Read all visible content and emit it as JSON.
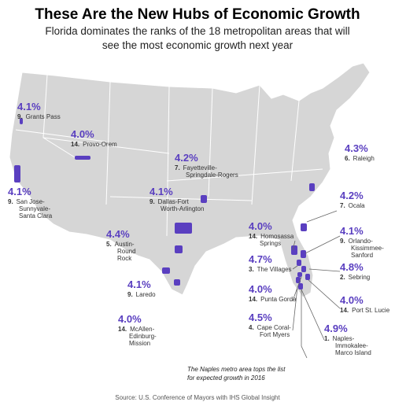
{
  "header": {
    "title": "These Are the New Hubs of Economic Growth",
    "subtitle_lines": [
      "Florida dominates the ranks of the 18 metropolitan areas that will",
      "see the most economic growth next year"
    ]
  },
  "regions": [
    {
      "rank": "9.",
      "name_lines": [
        "Grants Pass"
      ],
      "growth": "4.1%"
    },
    {
      "rank": "14.",
      "name_lines": [
        "Provo-Orem"
      ],
      "growth": "4.0%"
    },
    {
      "rank": "7.",
      "name_lines": [
        "Fayetteville-",
        "Springdale-Rogers"
      ],
      "growth": "4.2%"
    },
    {
      "rank": "6.",
      "name_lines": [
        "Raleigh"
      ],
      "growth": "4.3%"
    },
    {
      "rank": "9.",
      "name_lines": [
        "San Jose-",
        "Sunnyvale-",
        "Santa Clara"
      ],
      "growth": "4.1%"
    },
    {
      "rank": "9.",
      "name_lines": [
        "Dallas-Fort",
        "Worth-Arlington"
      ],
      "growth": "4.1%"
    },
    {
      "rank": "5.",
      "name_lines": [
        "Austin-",
        "Round",
        "Rock"
      ],
      "growth": "4.4%"
    },
    {
      "rank": "9.",
      "name_lines": [
        "Laredo"
      ],
      "growth": "4.1%"
    },
    {
      "rank": "14.",
      "name_lines": [
        "McAllen-",
        "Edinburg-",
        "Mission"
      ],
      "growth": "4.0%"
    },
    {
      "rank": "7.",
      "name_lines": [
        "Ocala"
      ],
      "growth": "4.2%"
    },
    {
      "rank": "14.",
      "name_lines": [
        "Homosassa",
        "Springs"
      ],
      "growth": "4.0%"
    },
    {
      "rank": "9.",
      "name_lines": [
        "Orlando-",
        "Kissimmee-",
        "Sanford"
      ],
      "growth": "4.1%"
    },
    {
      "rank": "3.",
      "name_lines": [
        "The Villages"
      ],
      "growth": "4.7%"
    },
    {
      "rank": "2.",
      "name_lines": [
        "Sebring"
      ],
      "growth": "4.8%"
    },
    {
      "rank": "14.",
      "name_lines": [
        "Punta Gorda"
      ],
      "growth": "4.0%"
    },
    {
      "rank": "14.",
      "name_lines": [
        "Port St. Lucie"
      ],
      "growth": "4.0%"
    },
    {
      "rank": "4.",
      "name_lines": [
        "Cape Coral-",
        "Fort Myers"
      ],
      "growth": "4.5%"
    },
    {
      "rank": "1.",
      "name_lines": [
        "Naples-",
        "Immokalee-",
        "Marco Island"
      ],
      "growth": "4.9%"
    }
  ],
  "note_lines": [
    "The Naples metro area tops the list",
    "for expected growth in 2016"
  ],
  "source": "Source: U.S. Conference of Mayors with IHS Global Insight"
}
